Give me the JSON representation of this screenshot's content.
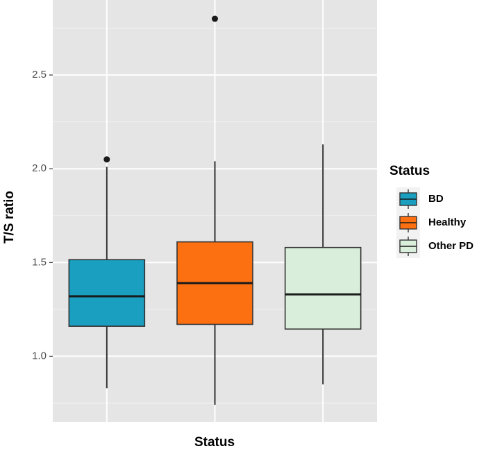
{
  "chart_data": {
    "type": "boxplot",
    "xlabel": "Status",
    "ylabel": "T/S ratio",
    "ylim": [
      0.65,
      2.9
    ],
    "yticks": [
      "1.0",
      "1.5",
      "2.0",
      "2.5"
    ],
    "ytick_values": [
      1.0,
      1.5,
      2.0,
      2.5
    ],
    "categories": [
      "BD",
      "Healthy",
      "Other PD"
    ],
    "colors": [
      "#1b9fc0",
      "#fc7012",
      "#d9eedb"
    ],
    "boxes": [
      {
        "category": "BD",
        "whisker_low": 0.83,
        "q1": 1.16,
        "median": 1.32,
        "q3": 1.515,
        "whisker_high": 2.01,
        "outliers": [
          2.05
        ]
      },
      {
        "category": "Healthy",
        "whisker_low": 0.74,
        "q1": 1.17,
        "median": 1.39,
        "q3": 1.61,
        "whisker_high": 2.04,
        "outliers": [
          2.8
        ]
      },
      {
        "category": "Other PD",
        "whisker_low": 0.85,
        "q1": 1.145,
        "median": 1.33,
        "q3": 1.58,
        "whisker_high": 2.13,
        "outliers": []
      }
    ],
    "grid": true,
    "legend": {
      "title": "Status",
      "position": "right",
      "entries": [
        "BD",
        "Healthy",
        "Other PD"
      ]
    }
  }
}
